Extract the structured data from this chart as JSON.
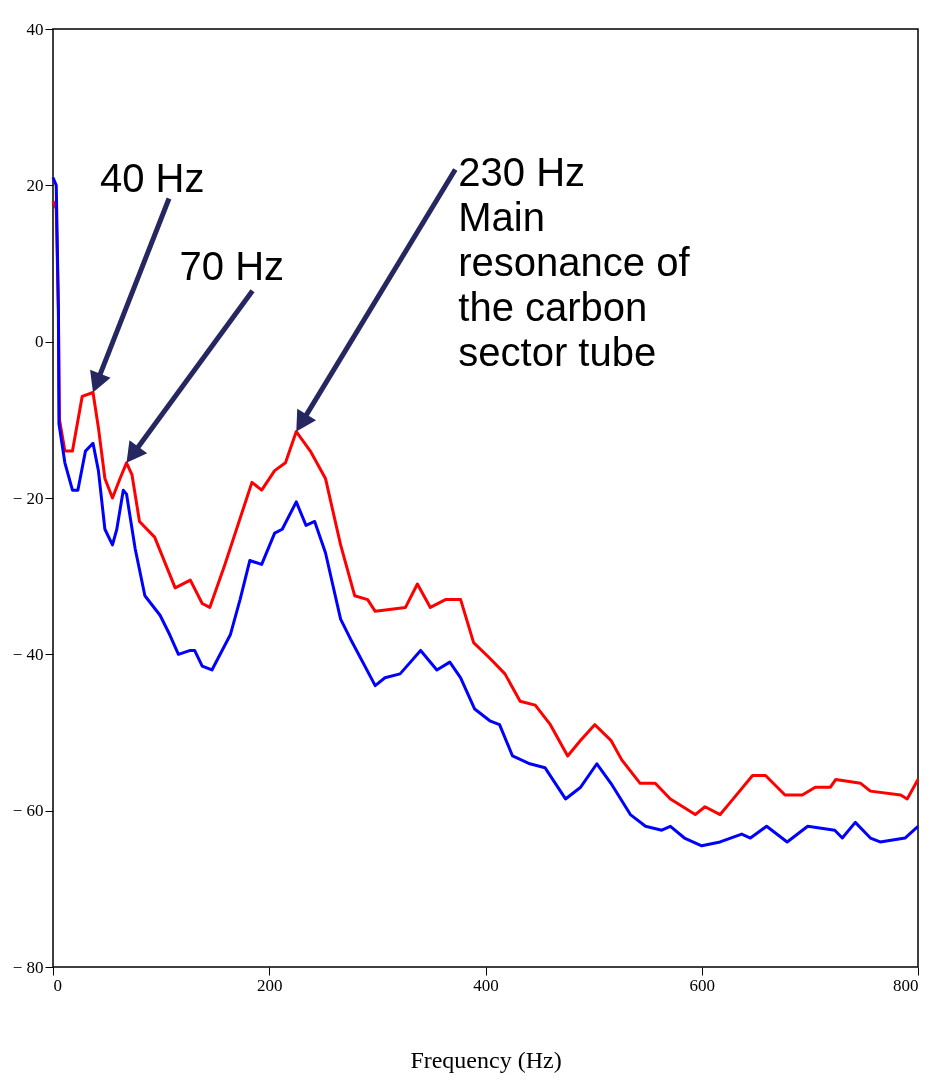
{
  "chart_data": {
    "type": "line",
    "xlabel": "Frequency (Hz)",
    "xlim": [
      0,
      800
    ],
    "ylim": [
      -80,
      40
    ],
    "xticks": [
      0,
      200,
      400,
      600,
      800
    ],
    "yticks": [
      {
        "value": -80,
        "label": "− 80"
      },
      {
        "value": -60,
        "label": "− 60"
      },
      {
        "value": -40,
        "label": "− 40"
      },
      {
        "value": -20,
        "label": "− 20"
      },
      0,
      20,
      40
    ],
    "grid": false,
    "legend": false,
    "line_style": "solid",
    "marker": "none",
    "series": [
      {
        "color": "#ff0000",
        "x": [
          0,
          3,
          5,
          6,
          11,
          18,
          27,
          37,
          42,
          48,
          55,
          62,
          68,
          73,
          80,
          94,
          113,
          127,
          138,
          145,
          159,
          184,
          193,
          205,
          215,
          225,
          238,
          252,
          266,
          279,
          291,
          298,
          326,
          337,
          349,
          363,
          377,
          389,
          404,
          418,
          432,
          446,
          460,
          476,
          488,
          501,
          516,
          526,
          543,
          557,
          571,
          594,
          603,
          617,
          626,
          647,
          659,
          677,
          693,
          705,
          719,
          724,
          747,
          756,
          784,
          790,
          800
        ],
        "values": [
          18,
          17,
          4,
          -10,
          -14,
          -14,
          -7,
          -6.5,
          -11,
          -17.5,
          -20,
          -17.5,
          -15.5,
          -17,
          -23,
          -25,
          -31.5,
          -30.5,
          -33.5,
          -34,
          -28.5,
          -18,
          -19,
          -16.5,
          -15.5,
          -11.5,
          -14,
          -17.5,
          -26,
          -32.5,
          -33,
          -34.5,
          -34,
          -31,
          -34,
          -33,
          -33,
          -38.5,
          -40.5,
          -42.5,
          -46,
          -46.5,
          -49,
          -53,
          -51,
          -49,
          -51,
          -53.5,
          -56.5,
          -56.5,
          -58.5,
          -60.5,
          -59.5,
          -60.5,
          -59,
          -55.5,
          -55.5,
          -58,
          -58,
          -57,
          -57,
          -56,
          -56.5,
          -57.5,
          -58,
          -58.5,
          -56
        ]
      },
      {
        "color": "#0000ff",
        "x": [
          0,
          3,
          5,
          5.5,
          11,
          18,
          23,
          30,
          37,
          42,
          48,
          55,
          59,
          65,
          68,
          76,
          85,
          99,
          108,
          116,
          127,
          131,
          138,
          147,
          164,
          173,
          182,
          193,
          205,
          212,
          225,
          234,
          242,
          252,
          266,
          275,
          298,
          307,
          321,
          340,
          355,
          367,
          377,
          390,
          404,
          413,
          425,
          441,
          455,
          474,
          488,
          503,
          516,
          534,
          548,
          563,
          571,
          584,
          600,
          617,
          637,
          645,
          660,
          679,
          698,
          723,
          730,
          742,
          756,
          765,
          788,
          800
        ],
        "values": [
          21,
          20,
          4,
          -10.5,
          -15.5,
          -19,
          -19,
          -14,
          -13,
          -16.5,
          -24,
          -26,
          -24,
          -19,
          -19.5,
          -26.5,
          -32.5,
          -35,
          -37.5,
          -40,
          -39.5,
          -39.5,
          -41.5,
          -42,
          -37.5,
          -33,
          -28,
          -28.5,
          -24.5,
          -24,
          -20.5,
          -23.5,
          -23,
          -27,
          -35.5,
          -38,
          -44,
          -43,
          -42.5,
          -39.5,
          -42,
          -41,
          -43,
          -47,
          -48.5,
          -49,
          -53,
          -54,
          -54.5,
          -58.5,
          -57,
          -54,
          -56.5,
          -60.5,
          -62,
          -62.5,
          -62,
          -63.5,
          -64.5,
          -64,
          -63,
          -63.5,
          -62,
          -64,
          -62,
          -62.5,
          -63.5,
          -61.5,
          -63.5,
          -64,
          -63.5,
          -62
        ]
      }
    ],
    "annotations": [
      "40 Hz",
      "70 Hz",
      "230 Hz\nMain\nresonance of\nthe carbon\nsector tube"
    ]
  }
}
